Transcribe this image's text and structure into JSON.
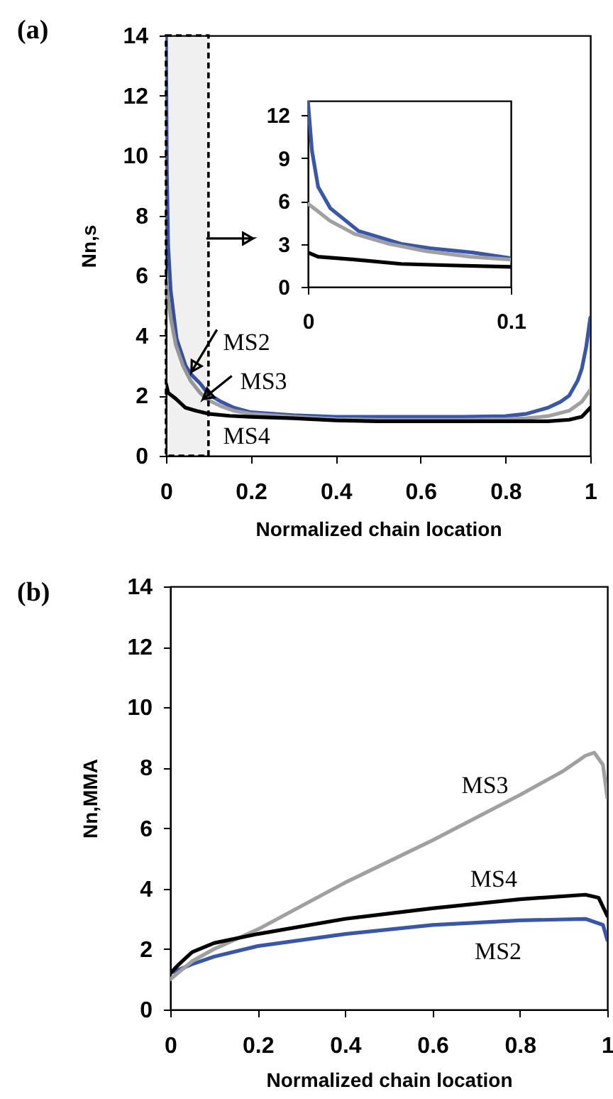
{
  "chart_data": [
    {
      "type": "line",
      "title": "(a)",
      "xlabel": "Normalized chain location",
      "ylabel": "Nn,s",
      "xlim": [
        0,
        1
      ],
      "ylim": [
        0,
        14
      ],
      "xticks": [
        0,
        0.2,
        0.4,
        0.6,
        0.8,
        1
      ],
      "yticks": [
        0,
        2,
        4,
        6,
        8,
        10,
        12,
        14
      ],
      "series": [
        {
          "color": "#3a56a8",
          "x": [
            0,
            0.002,
            0.005,
            0.011,
            0.025,
            0.046,
            0.06,
            0.081,
            0.1,
            0.13,
            0.16,
            0.2,
            0.3,
            0.4,
            0.5,
            0.6,
            0.7,
            0.8,
            0.85,
            0.9,
            0.93,
            0.95,
            0.97,
            0.98,
            0.99,
            1
          ],
          "values": [
            14,
            9.5,
            7,
            5.5,
            3.9,
            3.0,
            2.7,
            2.4,
            2.05,
            1.8,
            1.6,
            1.45,
            1.35,
            1.3,
            1.3,
            1.3,
            1.3,
            1.32,
            1.4,
            1.6,
            1.8,
            2.0,
            2.5,
            2.9,
            3.6,
            4.6
          ]
        },
        {
          "color": "#a0a0a0",
          "x": [
            0,
            0.002,
            0.011,
            0.023,
            0.04,
            0.058,
            0.08,
            0.1,
            0.13,
            0.16,
            0.2,
            0.3,
            0.4,
            0.5,
            0.6,
            0.7,
            0.8,
            0.85,
            0.9,
            0.95,
            0.98,
            1
          ],
          "values": [
            5.8,
            5.6,
            4.6,
            3.7,
            3.0,
            2.5,
            2.1,
            1.85,
            1.65,
            1.5,
            1.4,
            1.3,
            1.22,
            1.2,
            1.2,
            1.2,
            1.22,
            1.25,
            1.32,
            1.5,
            1.8,
            2.2
          ]
        },
        {
          "color": "#000000",
          "x": [
            0,
            0.005,
            0.023,
            0.046,
            0.07,
            0.1,
            0.15,
            0.2,
            0.3,
            0.4,
            0.5,
            0.6,
            0.7,
            0.8,
            0.9,
            0.95,
            0.98,
            1
          ],
          "values": [
            2.4,
            2.1,
            1.9,
            1.6,
            1.5,
            1.4,
            1.33,
            1.3,
            1.25,
            1.18,
            1.15,
            1.15,
            1.15,
            1.15,
            1.15,
            1.2,
            1.3,
            1.6
          ]
        }
      ],
      "annotations": [
        "MS2",
        "MS3",
        "MS4"
      ],
      "bands": [
        {
          "axis": "x",
          "from": 0,
          "to": 0.1,
          "color": "#000000"
        }
      ]
    },
    {
      "type": "line",
      "xlim": [
        0,
        0.1
      ],
      "ylim": [
        0,
        13
      ],
      "xticks": [
        0,
        0.1
      ],
      "yticks": [
        0,
        3,
        6,
        9,
        12
      ],
      "series": [
        {
          "color": "#3a56a8",
          "x": [
            0,
            0.002,
            0.005,
            0.011,
            0.025,
            0.046,
            0.06,
            0.081,
            0.1
          ],
          "values": [
            13,
            9.5,
            7,
            5.5,
            3.9,
            3.0,
            2.7,
            2.4,
            2.0
          ]
        },
        {
          "color": "#a0a0a0",
          "x": [
            0,
            0.002,
            0.011,
            0.023,
            0.04,
            0.058,
            0.08,
            0.1
          ],
          "values": [
            5.8,
            5.6,
            4.6,
            3.7,
            3.0,
            2.5,
            2.1,
            1.9
          ]
        },
        {
          "color": "#000000",
          "x": [
            0,
            0.005,
            0.023,
            0.046,
            0.07,
            0.1
          ],
          "values": [
            2.4,
            2.1,
            1.9,
            1.6,
            1.5,
            1.4
          ]
        }
      ]
    },
    {
      "type": "line",
      "title": "(b)",
      "xlabel": "Normalized chain location",
      "ylabel": "Nn,MMA",
      "xlim": [
        0,
        1
      ],
      "ylim": [
        0,
        14
      ],
      "xticks": [
        0,
        0.2,
        0.4,
        0.6,
        0.8,
        1
      ],
      "yticks": [
        0,
        2,
        4,
        6,
        8,
        10,
        12,
        14
      ],
      "series": [
        {
          "color": "#3a56a8",
          "x": [
            0,
            0.05,
            0.1,
            0.2,
            0.4,
            0.6,
            0.8,
            0.95,
            0.99,
            1
          ],
          "values": [
            1.2,
            1.5,
            1.75,
            2.1,
            2.5,
            2.8,
            2.95,
            3.0,
            2.8,
            2.3
          ]
        },
        {
          "color": "#a0a0a0",
          "x": [
            0,
            0.05,
            0.1,
            0.2,
            0.4,
            0.6,
            0.8,
            0.9,
            0.95,
            0.97,
            0.99,
            1
          ],
          "values": [
            1.0,
            1.6,
            2.0,
            2.65,
            4.2,
            5.6,
            7.1,
            7.9,
            8.4,
            8.5,
            8.1,
            7.0
          ]
        },
        {
          "color": "#000000",
          "x": [
            0,
            0.02,
            0.05,
            0.1,
            0.2,
            0.4,
            0.6,
            0.8,
            0.95,
            0.98,
            1
          ],
          "values": [
            1.2,
            1.5,
            1.9,
            2.2,
            2.5,
            3.0,
            3.35,
            3.65,
            3.8,
            3.7,
            3.1
          ]
        }
      ],
      "annotations": [
        "MS3",
        "MS4",
        "MS2"
      ]
    }
  ]
}
